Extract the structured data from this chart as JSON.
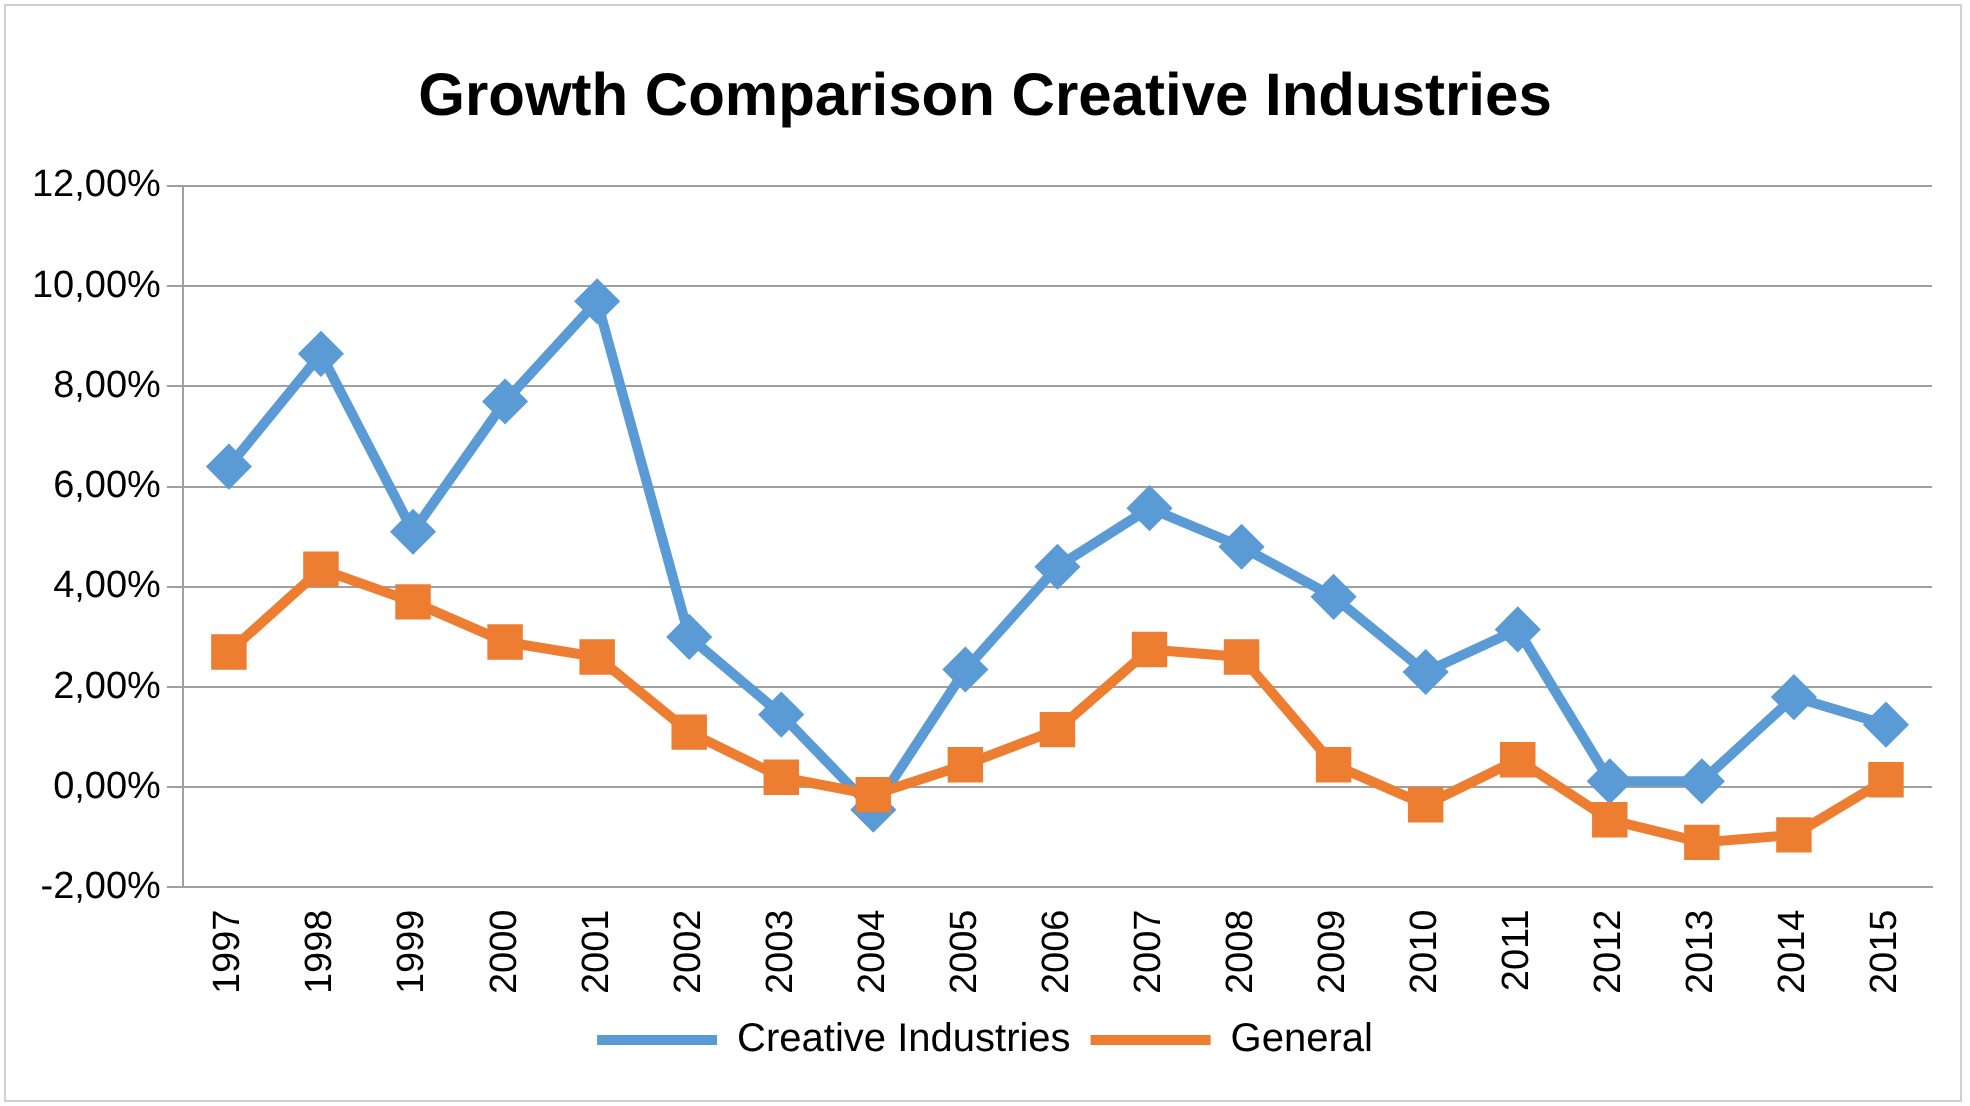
{
  "chart_data": {
    "type": "line",
    "title": "Growth Comparison Creative Industries",
    "categories": [
      "1997",
      "1998",
      "1999",
      "2000",
      "2001",
      "2002",
      "2003",
      "2004",
      "2005",
      "2006",
      "2007",
      "2008",
      "2009",
      "2010",
      "2011",
      "2012",
      "2013",
      "2014",
      "2015"
    ],
    "series": [
      {
        "name": "Creative Industries",
        "color": "#5b9bd5",
        "marker": "diamond",
        "values": [
          6.4,
          8.65,
          5.1,
          7.7,
          9.7,
          3.0,
          1.45,
          -0.45,
          2.35,
          4.4,
          5.57,
          4.8,
          3.8,
          2.3,
          3.15,
          0.12,
          0.12,
          1.8,
          1.25
        ]
      },
      {
        "name": "General",
        "color": "#ed7d31",
        "marker": "square",
        "values": [
          2.7,
          4.35,
          3.7,
          2.9,
          2.6,
          1.1,
          0.2,
          -0.15,
          0.45,
          1.15,
          2.75,
          2.6,
          0.45,
          -0.35,
          0.55,
          -0.65,
          -1.1,
          -0.95,
          0.15
        ]
      }
    ],
    "ylim": [
      -2,
      12
    ],
    "yticks": [
      {
        "value": -2,
        "label": "-2,00%"
      },
      {
        "value": 0,
        "label": "0,00%"
      },
      {
        "value": 2,
        "label": "2,00%"
      },
      {
        "value": 4,
        "label": "4,00%"
      },
      {
        "value": 6,
        "label": "6,00%"
      },
      {
        "value": 8,
        "label": "8,00%"
      },
      {
        "value": 10,
        "label": "10,00%"
      },
      {
        "value": 12,
        "label": "12,00%"
      }
    ],
    "grid": "y",
    "legend": "bottom",
    "line_style": "solid"
  }
}
